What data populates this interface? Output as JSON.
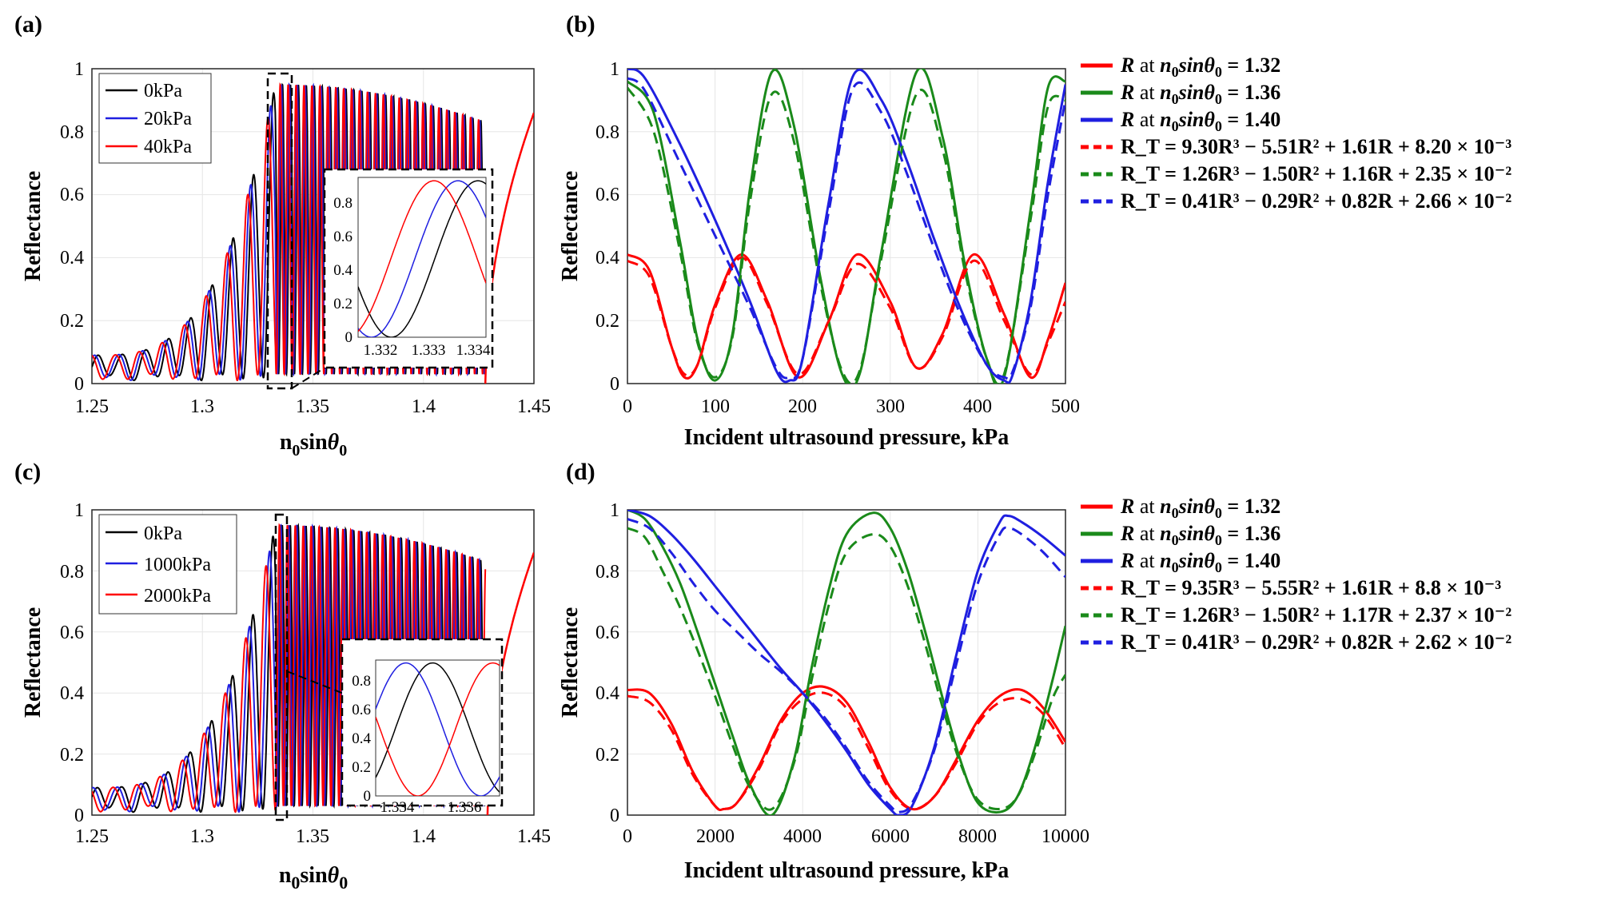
{
  "figure": {
    "panels": [
      {
        "label": "(a)",
        "ylabel": "Reflectance",
        "xlabel": "n",
        "xlabel_sub": "0",
        "xlabel_rest": "sin",
        "xlabel_theta": "θ",
        "xlabel_theta_sub": "0",
        "xticks": [
          "1.25",
          "1.3",
          "1.35",
          "1.4",
          "1.45"
        ],
        "yticks": [
          "0",
          "0.2",
          "0.4",
          "0.6",
          "0.8",
          "1"
        ],
        "legend": [
          "0kPa",
          "20kPa",
          "40kPa"
        ],
        "inset_xticks": [
          "1.332",
          "1.333",
          "1.334"
        ],
        "inset_yticks": [
          "0",
          "0.2",
          "0.4",
          "0.6",
          "0.8"
        ]
      },
      {
        "label": "(b)",
        "ylabel": "Reflectance",
        "xlabel": "Incident ultrasound pressure, kPa",
        "xticks": [
          "0",
          "100",
          "200",
          "300",
          "400",
          "500"
        ],
        "yticks": [
          "0",
          "0.2",
          "0.4",
          "0.6",
          "0.8",
          "1"
        ],
        "legend": [
          {
            "pre": "R",
            "mid": " at ",
            "n": "n",
            "sub": "0",
            "rest": "sinθ",
            "sub2": "0",
            "val": " = 1.32"
          },
          {
            "pre": "R",
            "mid": " at ",
            "n": "n",
            "sub": "0",
            "rest": "sinθ",
            "sub2": "0",
            "val": " = 1.36"
          },
          {
            "pre": "R",
            "mid": " at ",
            "n": "n",
            "sub": "0",
            "rest": "sinθ",
            "sub2": "0",
            "val": " = 1.40"
          }
        ],
        "fits": [
          "R_T = 9.30R³ − 5.51R² + 1.61R + 8.20 × 10⁻³",
          "R_T = 1.26R³ − 1.50R² + 1.16R + 2.35 × 10⁻²",
          "R_T = 0.41R³ − 0.29R² + 0.82R + 2.66 × 10⁻²"
        ]
      },
      {
        "label": "(c)",
        "ylabel": "Reflectance",
        "xlabel": "n",
        "xlabel_sub": "0",
        "xlabel_rest": "sin",
        "xlabel_theta": "θ",
        "xlabel_theta_sub": "0",
        "xticks": [
          "1.25",
          "1.3",
          "1.35",
          "1.4",
          "1.45"
        ],
        "yticks": [
          "0",
          "0.2",
          "0.4",
          "0.6",
          "0.8",
          "1"
        ],
        "legend": [
          "0kPa",
          "1000kPa",
          "2000kPa"
        ],
        "inset_xticks": [
          "1.334",
          "1.336"
        ],
        "inset_yticks": [
          "0",
          "0.2",
          "0.4",
          "0.6",
          "0.8"
        ]
      },
      {
        "label": "(d)",
        "ylabel": "Reflectance",
        "xlabel": "Incident ultrasound pressure, kPa",
        "xticks": [
          "0",
          "2000",
          "4000",
          "6000",
          "8000",
          "10000"
        ],
        "yticks": [
          "0",
          "0.2",
          "0.4",
          "0.6",
          "0.8",
          "1"
        ],
        "legend": [
          {
            "pre": "R",
            "mid": " at ",
            "n": "n",
            "sub": "0",
            "rest": "sinθ",
            "sub2": "0",
            "val": " = 1.32"
          },
          {
            "pre": "R",
            "mid": " at ",
            "n": "n",
            "sub": "0",
            "rest": "sinθ",
            "sub2": "0",
            "val": " = 1.36"
          },
          {
            "pre": "R",
            "mid": " at ",
            "n": "n",
            "sub": "0",
            "rest": "sinθ",
            "sub2": "0",
            "val": " = 1.40"
          }
        ],
        "fits": [
          "R_T = 9.35R³ − 5.55R² + 1.61R + 8.8 × 10⁻³",
          "R_T = 1.26R³ − 1.50R² + 1.17R + 2.37 × 10⁻²",
          "R_T = 0.41R³ − 0.29R² + 0.82R + 2.62 × 10⁻²"
        ]
      }
    ]
  },
  "colors": {
    "red": "#ff0000",
    "green": "#1a8a1a",
    "blue": "#1f1fe0",
    "black": "#000000",
    "grid": "#e6e6e6"
  },
  "chart_data": [
    {
      "type": "line",
      "title": "(a)",
      "xlabel": "n0 sin θ0",
      "ylabel": "Reflectance",
      "xlim": [
        1.25,
        1.45
      ],
      "ylim": [
        0,
        1
      ],
      "series": [
        {
          "name": "0kPa",
          "color": "#000000",
          "description": "rapid oscillation; amplitude rises from ~0.1 to ~0.95 near 1.333, oscillates ~0–0.95 until ~1.428"
        },
        {
          "name": "20kPa",
          "color": "#1f1fe0"
        },
        {
          "name": "40kPa",
          "color": "#ff0000"
        }
      ],
      "tail": {
        "x": [
          1.428,
          1.44,
          1.45
        ],
        "y": [
          0.0,
          0.72,
          0.86
        ]
      },
      "inset": {
        "xlim": [
          1.3312,
          1.3344
        ],
        "ylim": [
          0,
          0.95
        ],
        "xticks": [
          1.332,
          1.333,
          1.334
        ],
        "yticks": [
          0,
          0.2,
          0.4,
          0.6,
          0.8
        ]
      }
    },
    {
      "type": "line",
      "title": "(b)",
      "xlabel": "Incident ultrasound pressure, kPa",
      "ylabel": "Reflectance",
      "xlim": [
        0,
        500
      ],
      "ylim": [
        0,
        1
      ],
      "series": [
        {
          "name": "R at n0 sinθ0 = 1.32",
          "color": "#ff0000",
          "style": "solid",
          "x": [
            0,
            25,
            50,
            65,
            80,
            100,
            130,
            160,
            195,
            230,
            262,
            300,
            330,
            360,
            395,
            430,
            460,
            480,
            500
          ],
          "y": [
            0.41,
            0.36,
            0.12,
            0.02,
            0.06,
            0.25,
            0.41,
            0.26,
            0.02,
            0.2,
            0.41,
            0.26,
            0.05,
            0.16,
            0.41,
            0.22,
            0.02,
            0.14,
            0.32
          ]
        },
        {
          "name": "R at n0 sinθ0 = 1.36",
          "color": "#1a8a1a",
          "style": "solid",
          "x": [
            0,
            30,
            60,
            80,
            100,
            120,
            140,
            165,
            190,
            220,
            245,
            265,
            290,
            330,
            360,
            385,
            410,
            430,
            460,
            480,
            500
          ],
          "y": [
            0.96,
            0.86,
            0.45,
            0.14,
            0.01,
            0.16,
            0.62,
            0.99,
            0.82,
            0.34,
            0.03,
            0.03,
            0.42,
            0.99,
            0.78,
            0.38,
            0.08,
            0.02,
            0.55,
            0.94,
            0.96
          ]
        },
        {
          "name": "R at n0 sinθ0 = 1.40",
          "color": "#1f1fe0",
          "style": "solid",
          "x": [
            0,
            20,
            60,
            100,
            140,
            170,
            185,
            200,
            230,
            258,
            290,
            320,
            350,
            380,
            410,
            430,
            440,
            460,
            480,
            500
          ],
          "y": [
            1.0,
            0.97,
            0.76,
            0.52,
            0.26,
            0.04,
            0.01,
            0.08,
            0.58,
            0.98,
            0.9,
            0.7,
            0.46,
            0.24,
            0.06,
            0.01,
            0.03,
            0.26,
            0.64,
            0.95
          ]
        },
        {
          "name": "R_T fit 1.32",
          "color": "#ff0000",
          "style": "dashed",
          "x": [
            0,
            25,
            50,
            65,
            80,
            100,
            130,
            160,
            195,
            230,
            262,
            300,
            330,
            360,
            395,
            430,
            460,
            480,
            500
          ],
          "y": [
            0.39,
            0.34,
            0.12,
            0.03,
            0.06,
            0.24,
            0.4,
            0.25,
            0.03,
            0.2,
            0.38,
            0.24,
            0.05,
            0.15,
            0.39,
            0.2,
            0.03,
            0.13,
            0.26
          ]
        },
        {
          "name": "R_T fit 1.36",
          "color": "#1a8a1a",
          "style": "dashed",
          "x": [
            0,
            30,
            60,
            80,
            100,
            120,
            140,
            165,
            190,
            220,
            245,
            265,
            290,
            330,
            360,
            385,
            410,
            430,
            460,
            480,
            500
          ],
          "y": [
            0.94,
            0.8,
            0.42,
            0.13,
            0.02,
            0.15,
            0.58,
            0.92,
            0.77,
            0.32,
            0.04,
            0.04,
            0.4,
            0.92,
            0.74,
            0.36,
            0.08,
            0.03,
            0.52,
            0.88,
            0.9
          ]
        },
        {
          "name": "R_T fit 1.40",
          "color": "#1f1fe0",
          "style": "dashed",
          "x": [
            0,
            20,
            60,
            100,
            140,
            170,
            185,
            200,
            230,
            258,
            290,
            320,
            350,
            380,
            410,
            430,
            440,
            460,
            480,
            500
          ],
          "y": [
            0.97,
            0.93,
            0.7,
            0.47,
            0.24,
            0.05,
            0.02,
            0.08,
            0.55,
            0.94,
            0.86,
            0.66,
            0.43,
            0.22,
            0.06,
            0.02,
            0.04,
            0.24,
            0.6,
            0.9
          ]
        }
      ]
    },
    {
      "type": "line",
      "title": "(c)",
      "xlabel": "n0 sin θ0",
      "ylabel": "Reflectance",
      "xlim": [
        1.25,
        1.45
      ],
      "ylim": [
        0,
        1
      ],
      "series": [
        {
          "name": "0kPa",
          "color": "#000000"
        },
        {
          "name": "1000kPa",
          "color": "#1f1fe0"
        },
        {
          "name": "2000kPa",
          "color": "#ff0000"
        }
      ],
      "tail": {
        "x": [
          1.429,
          1.44,
          1.45
        ],
        "y": [
          0.0,
          0.74,
          0.86
        ]
      },
      "inset": {
        "xlim": [
          1.333,
          1.3367
        ],
        "ylim": [
          0,
          0.95
        ],
        "xticks": [
          1.334,
          1.336
        ],
        "yticks": [
          0,
          0.2,
          0.4,
          0.6,
          0.8
        ]
      }
    },
    {
      "type": "line",
      "title": "(d)",
      "xlabel": "Incident ultrasound pressure, kPa",
      "ylabel": "Reflectance",
      "xlim": [
        0,
        10000
      ],
      "ylim": [
        0,
        1
      ],
      "series": [
        {
          "name": "R at n0 sinθ0 = 1.32",
          "color": "#ff0000",
          "style": "solid",
          "x": [
            0,
            500,
            1000,
            1500,
            2000,
            2200,
            2500,
            3000,
            3500,
            4000,
            4500,
            5000,
            5500,
            6000,
            6500,
            7000,
            7500,
            8000,
            8500,
            9000,
            9500,
            10000
          ],
          "y": [
            0.41,
            0.4,
            0.3,
            0.14,
            0.03,
            0.02,
            0.04,
            0.16,
            0.31,
            0.4,
            0.42,
            0.37,
            0.24,
            0.09,
            0.02,
            0.06,
            0.18,
            0.31,
            0.39,
            0.41,
            0.35,
            0.24
          ]
        },
        {
          "name": "R at n0 sinθ0 = 1.36",
          "color": "#1a8a1a",
          "style": "solid",
          "x": [
            0,
            400,
            800,
            1200,
            1600,
            2000,
            2400,
            2800,
            3300,
            3800,
            4200,
            4600,
            5000,
            5600,
            6000,
            6400,
            6800,
            7200,
            7600,
            8000,
            8500,
            8900,
            9300,
            9700,
            10000
          ],
          "y": [
            1.0,
            0.97,
            0.88,
            0.76,
            0.6,
            0.43,
            0.26,
            0.1,
            0.0,
            0.18,
            0.48,
            0.74,
            0.92,
            0.99,
            0.94,
            0.8,
            0.6,
            0.38,
            0.18,
            0.04,
            0.01,
            0.06,
            0.22,
            0.44,
            0.62
          ]
        },
        {
          "name": "R at n0 sinθ0 = 1.40",
          "color": "#1f1fe0",
          "style": "solid",
          "x": [
            0,
            500,
            1000,
            1500,
            2000,
            2500,
            3000,
            3500,
            4000,
            4500,
            5000,
            5500,
            6000,
            6200,
            6500,
            7000,
            7500,
            8000,
            8500,
            8700,
            9000,
            9500,
            10000
          ],
          "y": [
            1.0,
            0.98,
            0.92,
            0.84,
            0.75,
            0.66,
            0.57,
            0.48,
            0.4,
            0.31,
            0.21,
            0.1,
            0.02,
            0.0,
            0.03,
            0.22,
            0.52,
            0.8,
            0.96,
            0.98,
            0.96,
            0.91,
            0.85
          ]
        },
        {
          "name": "R_T fit 1.32",
          "color": "#ff0000",
          "style": "dashed",
          "x": [
            0,
            500,
            1000,
            1500,
            2000,
            2200,
            2500,
            3000,
            3500,
            4000,
            4500,
            5000,
            5500,
            6000,
            6500,
            7000,
            7500,
            8000,
            8500,
            9000,
            9500,
            10000
          ],
          "y": [
            0.39,
            0.37,
            0.28,
            0.13,
            0.03,
            0.02,
            0.04,
            0.15,
            0.3,
            0.38,
            0.4,
            0.35,
            0.22,
            0.08,
            0.02,
            0.06,
            0.17,
            0.3,
            0.37,
            0.38,
            0.33,
            0.22
          ]
        },
        {
          "name": "R_T fit 1.36",
          "color": "#1a8a1a",
          "style": "dashed",
          "x": [
            0,
            400,
            800,
            1200,
            1600,
            2000,
            2400,
            2800,
            3300,
            3800,
            4200,
            4600,
            5000,
            5600,
            6000,
            6400,
            6800,
            7200,
            7600,
            8000,
            8500,
            8900,
            9300,
            9700,
            10000
          ],
          "y": [
            0.94,
            0.91,
            0.8,
            0.68,
            0.54,
            0.39,
            0.23,
            0.09,
            0.02,
            0.17,
            0.44,
            0.69,
            0.86,
            0.92,
            0.88,
            0.75,
            0.56,
            0.35,
            0.17,
            0.05,
            0.02,
            0.06,
            0.2,
            0.38,
            0.46
          ]
        },
        {
          "name": "R_T fit 1.40",
          "color": "#1f1fe0",
          "style": "dashed",
          "x": [
            0,
            500,
            1000,
            1500,
            2000,
            2500,
            3000,
            3500,
            4000,
            4500,
            5000,
            5500,
            6000,
            6200,
            6500,
            7000,
            7500,
            8000,
            8500,
            8700,
            9000,
            9500,
            10000
          ],
          "y": [
            0.97,
            0.94,
            0.86,
            0.76,
            0.67,
            0.6,
            0.53,
            0.47,
            0.4,
            0.32,
            0.22,
            0.11,
            0.03,
            0.01,
            0.04,
            0.21,
            0.49,
            0.76,
            0.92,
            0.94,
            0.92,
            0.86,
            0.78
          ]
        }
      ]
    }
  ]
}
